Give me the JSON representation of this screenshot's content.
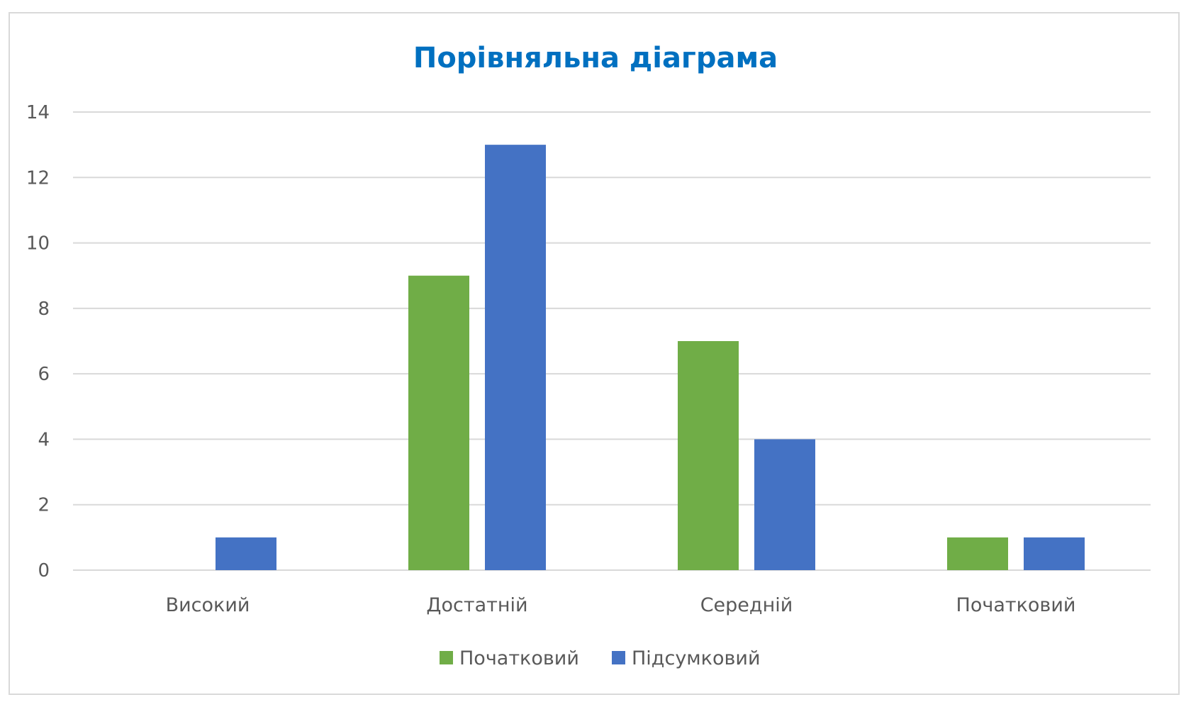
{
  "chart_data": {
    "type": "bar",
    "title": "Порівняльна діаграма",
    "categories": [
      "Високий",
      "Достатній",
      "Середній",
      "Початковий"
    ],
    "series": [
      {
        "name": "Початковий",
        "color": "#70ad47",
        "values": [
          0,
          9,
          7,
          1
        ]
      },
      {
        "name": "Підсумковий",
        "color": "#4472c4",
        "values": [
          1,
          13,
          4,
          1
        ]
      }
    ],
    "ylim": [
      0,
      14
    ],
    "yticks": [
      0,
      2,
      4,
      6,
      8,
      10,
      12,
      14
    ],
    "grid": true,
    "legend": "bottom"
  }
}
